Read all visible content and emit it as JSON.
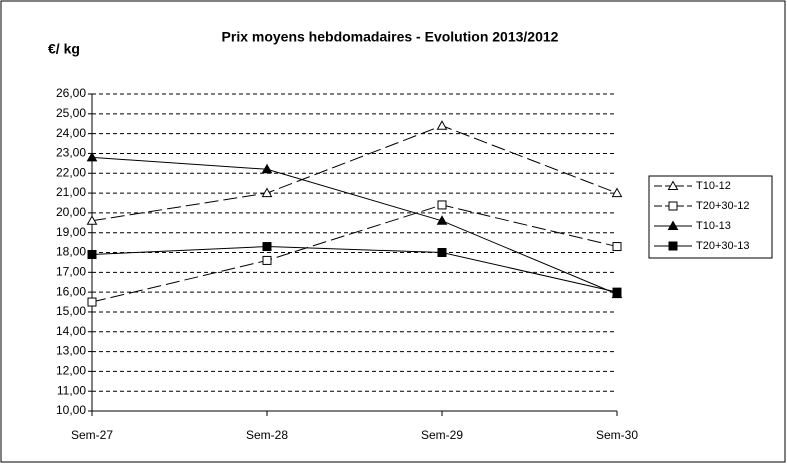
{
  "chart_data": {
    "type": "line",
    "title": "Prix moyens hebdomadaires - Evolution  2013/2012",
    "y_label": "€/ kg",
    "categories": [
      "Sem-27",
      "Sem-28",
      "Sem-29",
      "Sem-30"
    ],
    "series": [
      {
        "name": "T10-12",
        "color": "#000000",
        "marker": "triangle",
        "filled": false,
        "line_style": "dashed",
        "values": [
          19.6,
          21.0,
          24.4,
          21.0
        ]
      },
      {
        "name": "T20+30-12",
        "color": "#000000",
        "marker": "square",
        "filled": false,
        "line_style": "dashed",
        "values": [
          15.5,
          17.6,
          20.4,
          18.3
        ]
      },
      {
        "name": "T10-13",
        "color": "#000000",
        "marker": "triangle",
        "filled": true,
        "line_style": "solid",
        "values": [
          22.8,
          22.2,
          19.6,
          15.9
        ]
      },
      {
        "name": "T20+30-13",
        "color": "#000000",
        "marker": "square",
        "filled": true,
        "line_style": "solid",
        "values": [
          17.9,
          18.3,
          18.0,
          16.0
        ]
      }
    ],
    "ylim": [
      10,
      26
    ],
    "yticks": [
      {
        "value": 10,
        "label": "10,00"
      },
      {
        "value": 11,
        "label": "11,00"
      },
      {
        "value": 12,
        "label": "12,00"
      },
      {
        "value": 13,
        "label": "13,00"
      },
      {
        "value": 14,
        "label": "14,00"
      },
      {
        "value": 15,
        "label": "15,00"
      },
      {
        "value": 16,
        "label": "16,00"
      },
      {
        "value": 17,
        "label": "17,00"
      },
      {
        "value": 18,
        "label": "18,00"
      },
      {
        "value": 19,
        "label": "19,00"
      },
      {
        "value": 20,
        "label": "20,00"
      },
      {
        "value": 21,
        "label": "21,00"
      },
      {
        "value": 22,
        "label": "22,00"
      },
      {
        "value": 23,
        "label": "23,00"
      },
      {
        "value": 24,
        "label": "24,00"
      },
      {
        "value": 25,
        "label": "25,00"
      },
      {
        "value": 26,
        "label": "26,00"
      }
    ],
    "grid": true,
    "legend": "right"
  }
}
